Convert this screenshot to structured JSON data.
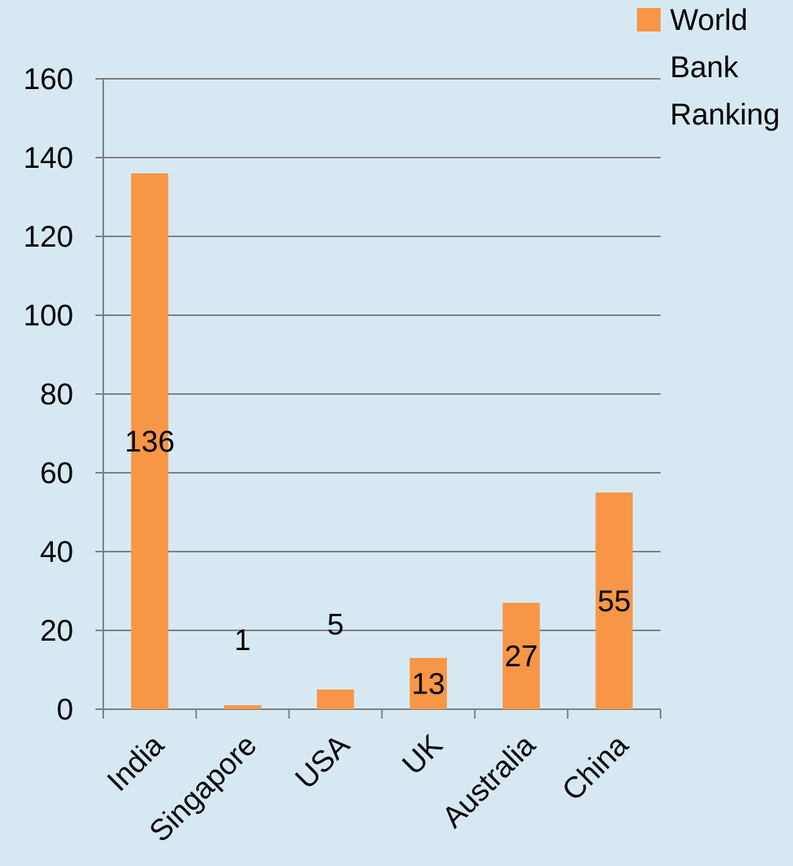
{
  "chart_data": {
    "type": "bar",
    "categories": [
      "India",
      "Singapore",
      "USA",
      "UK",
      "Australia",
      "China"
    ],
    "series": [
      {
        "name": "World Bank Ranking",
        "values": [
          136,
          1,
          5,
          13,
          27,
          55
        ],
        "color": "#f79646"
      }
    ],
    "data_labels": [
      "136",
      "1",
      "5",
      "13",
      "27",
      "55"
    ],
    "yticks": [
      0,
      20,
      40,
      60,
      80,
      100,
      120,
      140,
      160
    ],
    "ylim": [
      0,
      160
    ],
    "grid": true,
    "legend": {
      "position": "top-right",
      "lines": [
        "World",
        "Bank",
        "Ranking"
      ]
    },
    "colors": {
      "background": "#d6e9f3",
      "gridline": "#7f7f7f",
      "bar": "#f79646"
    }
  }
}
